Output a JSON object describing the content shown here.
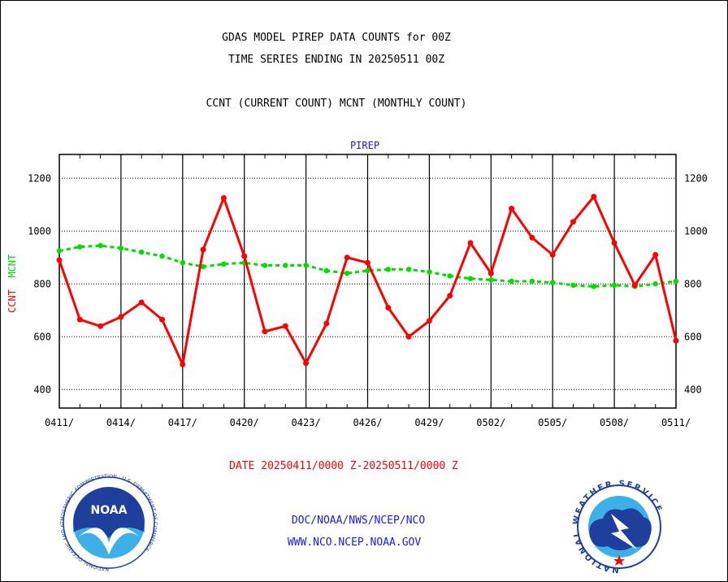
{
  "titles": {
    "line1": "GDAS MODEL PIREP DATA COUNTS for 00Z",
    "line2": "TIME SERIES ENDING IN 20250511 00Z",
    "line3": "CCNT (CURRENT COUNT) MCNT (MONTHLY COUNT)"
  },
  "plot_title": "PIREP",
  "ylabel": {
    "ccnt": "CCNT",
    "mcnt": "MCNT"
  },
  "date_range": "DATE 20250411/0000 Z-20250511/0000 Z",
  "footer": {
    "org_line1": "DOC/NOAA/NWS/NCEP/NCO",
    "org_line2": "WWW.NCO.NCEP.NOAA.GOV",
    "left_logo": "NOAA",
    "left_logo_ring": "NATIONAL OCEANIC AND ATMOSPHERIC ADMINISTRATION · U.S. DEPARTMENT OF COMMERCE",
    "right_logo_ring": "NATIONAL WEATHER SERVICE"
  },
  "colors": {
    "ccnt": "#ff0000",
    "mcnt": "#00dd00",
    "text_blue": "#1a1aee"
  },
  "chart_data": {
    "type": "line",
    "title": "PIREP",
    "x_ticks": [
      "0411/",
      "0414/",
      "0417/",
      "0420/",
      "0423/",
      "0426/",
      "0429/",
      "0502/",
      "0505/",
      "0508/",
      "0511/"
    ],
    "x_start": "0411",
    "x_end": "0511",
    "ylim": [
      330,
      1290
    ],
    "y_ticks": [
      400,
      600,
      800,
      1000,
      1200
    ],
    "grid": true,
    "series": [
      {
        "name": "CCNT",
        "values": [
          890,
          665,
          640,
          675,
          730,
          665,
          495,
          930,
          1125,
          905,
          620,
          640,
          500,
          650,
          900,
          880,
          710,
          600,
          660,
          755,
          955,
          840,
          1085,
          975,
          910,
          1035,
          1130,
          955,
          795,
          910,
          585
        ]
      },
      {
        "name": "MCNT",
        "values": [
          925,
          940,
          945,
          935,
          920,
          905,
          880,
          865,
          875,
          880,
          870,
          870,
          870,
          850,
          840,
          850,
          855,
          855,
          845,
          830,
          820,
          815,
          810,
          810,
          805,
          795,
          790,
          795,
          790,
          800,
          810
        ]
      }
    ]
  }
}
